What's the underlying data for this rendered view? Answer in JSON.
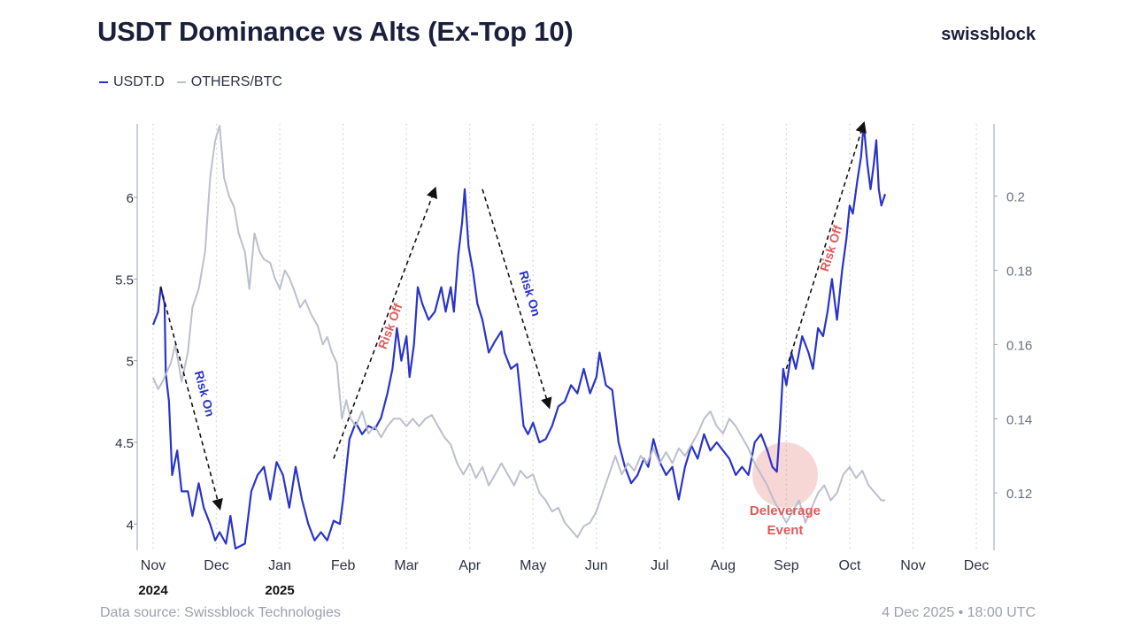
{
  "header": {
    "title": "USDT Dominance vs Alts (Ex-Top 10)",
    "brand": "swissblock"
  },
  "legend": [
    {
      "label": "USDT.D",
      "color": "#2a34c8"
    },
    {
      "label": "OTHERS/BTC",
      "color": "#b8bccb"
    }
  ],
  "footer": {
    "source": "Data source: Swissblock Technologies",
    "timestamp": "4 Dec 2025 • 18:00 UTC"
  },
  "chart_data": {
    "type": "line",
    "title": "USDT Dominance vs Alts (Ex-Top 10)",
    "x_months": [
      "Nov",
      "Dec",
      "Jan",
      "Feb",
      "Mar",
      "Apr",
      "May",
      "Jun",
      "Jul",
      "Aug",
      "Sep",
      "Oct",
      "Nov",
      "Dec"
    ],
    "year_labels": [
      {
        "month_index": 0,
        "label": "2024"
      },
      {
        "month_index": 2,
        "label": "2025"
      }
    ],
    "y_left": {
      "ticks": [
        4,
        4.5,
        5,
        5.5,
        6
      ],
      "labels": [
        "4",
        "4.5",
        "5",
        "5.5",
        "6"
      ],
      "range": [
        3.85,
        6.45
      ]
    },
    "y_right": {
      "ticks": [
        0.12,
        0.14,
        0.16,
        0.18,
        0.2
      ],
      "labels": [
        "0.12",
        "0.14",
        "0.16",
        "0.18",
        "0.2"
      ],
      "range": [
        0.105,
        0.2195
      ]
    },
    "series": [
      {
        "name": "USDT.D",
        "axis": "left",
        "color": "#2a34c8",
        "points": [
          [
            0,
            5.22
          ],
          [
            0.08,
            5.3
          ],
          [
            0.12,
            5.45
          ],
          [
            0.18,
            5.35
          ],
          [
            0.2,
            4.92
          ],
          [
            0.25,
            4.75
          ],
          [
            0.3,
            4.3
          ],
          [
            0.38,
            4.45
          ],
          [
            0.45,
            4.2
          ],
          [
            0.55,
            4.2
          ],
          [
            0.62,
            4.05
          ],
          [
            0.72,
            4.25
          ],
          [
            0.8,
            4.1
          ],
          [
            0.9,
            4.0
          ],
          [
            0.98,
            3.9
          ],
          [
            1.05,
            3.95
          ],
          [
            1.15,
            3.88
          ],
          [
            1.22,
            4.05
          ],
          [
            1.3,
            3.85
          ],
          [
            1.45,
            3.88
          ],
          [
            1.55,
            4.2
          ],
          [
            1.65,
            4.3
          ],
          [
            1.75,
            4.35
          ],
          [
            1.85,
            4.15
          ],
          [
            1.95,
            4.38
          ],
          [
            2.05,
            4.3
          ],
          [
            2.15,
            4.1
          ],
          [
            2.25,
            4.35
          ],
          [
            2.35,
            4.15
          ],
          [
            2.45,
            4.0
          ],
          [
            2.55,
            3.9
          ],
          [
            2.65,
            3.95
          ],
          [
            2.75,
            3.9
          ],
          [
            2.85,
            4.02
          ],
          [
            2.95,
            4.0
          ],
          [
            3.0,
            4.15
          ],
          [
            3.1,
            4.52
          ],
          [
            3.2,
            4.62
          ],
          [
            3.3,
            4.55
          ],
          [
            3.4,
            4.6
          ],
          [
            3.5,
            4.58
          ],
          [
            3.6,
            4.65
          ],
          [
            3.7,
            4.8
          ],
          [
            3.78,
            4.95
          ],
          [
            3.85,
            5.2
          ],
          [
            3.92,
            5.0
          ],
          [
            4.0,
            5.15
          ],
          [
            4.05,
            4.9
          ],
          [
            4.12,
            5.1
          ],
          [
            4.18,
            5.45
          ],
          [
            4.25,
            5.35
          ],
          [
            4.35,
            5.25
          ],
          [
            4.45,
            5.3
          ],
          [
            4.55,
            5.45
          ],
          [
            4.62,
            5.3
          ],
          [
            4.7,
            5.45
          ],
          [
            4.75,
            5.3
          ],
          [
            4.82,
            5.65
          ],
          [
            4.88,
            5.85
          ],
          [
            4.92,
            6.05
          ],
          [
            4.98,
            5.7
          ],
          [
            5.05,
            5.55
          ],
          [
            5.12,
            5.35
          ],
          [
            5.2,
            5.25
          ],
          [
            5.3,
            5.05
          ],
          [
            5.4,
            5.12
          ],
          [
            5.5,
            5.18
          ],
          [
            5.55,
            5.05
          ],
          [
            5.65,
            4.95
          ],
          [
            5.75,
            4.98
          ],
          [
            5.85,
            4.6
          ],
          [
            5.92,
            4.55
          ],
          [
            6.0,
            4.62
          ],
          [
            6.1,
            4.5
          ],
          [
            6.2,
            4.52
          ],
          [
            6.3,
            4.6
          ],
          [
            6.4,
            4.72
          ],
          [
            6.5,
            4.75
          ],
          [
            6.6,
            4.85
          ],
          [
            6.7,
            4.8
          ],
          [
            6.8,
            4.95
          ],
          [
            6.9,
            4.8
          ],
          [
            7.0,
            4.9
          ],
          [
            7.05,
            5.05
          ],
          [
            7.15,
            4.85
          ],
          [
            7.25,
            4.82
          ],
          [
            7.35,
            4.5
          ],
          [
            7.45,
            4.35
          ],
          [
            7.55,
            4.25
          ],
          [
            7.65,
            4.3
          ],
          [
            7.75,
            4.4
          ],
          [
            7.82,
            4.35
          ],
          [
            7.9,
            4.52
          ],
          [
            8.0,
            4.38
          ],
          [
            8.1,
            4.3
          ],
          [
            8.2,
            4.35
          ],
          [
            8.3,
            4.15
          ],
          [
            8.4,
            4.35
          ],
          [
            8.5,
            4.48
          ],
          [
            8.6,
            4.4
          ],
          [
            8.7,
            4.55
          ],
          [
            8.8,
            4.45
          ],
          [
            8.9,
            4.5
          ],
          [
            9.0,
            4.45
          ],
          [
            9.1,
            4.4
          ],
          [
            9.2,
            4.3
          ],
          [
            9.3,
            4.35
          ],
          [
            9.4,
            4.3
          ],
          [
            9.5,
            4.5
          ],
          [
            9.6,
            4.55
          ],
          [
            9.7,
            4.45
          ],
          [
            9.78,
            4.35
          ],
          [
            9.85,
            4.32
          ],
          [
            9.9,
            4.6
          ],
          [
            9.95,
            4.95
          ],
          [
            10.0,
            4.85
          ],
          [
            10.08,
            5.05
          ],
          [
            10.15,
            4.95
          ],
          [
            10.25,
            5.15
          ],
          [
            10.35,
            5.05
          ],
          [
            10.42,
            4.95
          ],
          [
            10.5,
            5.2
          ],
          [
            10.58,
            5.15
          ],
          [
            10.65,
            5.3
          ],
          [
            10.72,
            5.5
          ],
          [
            10.8,
            5.25
          ],
          [
            10.88,
            5.55
          ],
          [
            10.95,
            5.75
          ],
          [
            11.0,
            5.95
          ],
          [
            11.05,
            5.9
          ],
          [
            11.12,
            6.1
          ],
          [
            11.18,
            6.25
          ],
          [
            11.22,
            6.45
          ],
          [
            11.28,
            6.2
          ],
          [
            11.33,
            6.05
          ],
          [
            11.38,
            6.2
          ],
          [
            11.42,
            6.35
          ],
          [
            11.46,
            6.05
          ],
          [
            11.5,
            5.95
          ],
          [
            11.56,
            6.02
          ]
        ]
      },
      {
        "name": "OTHERS/BTC",
        "axis": "right",
        "color": "#b8bccb",
        "points": [
          [
            0,
            0.151
          ],
          [
            0.08,
            0.148
          ],
          [
            0.15,
            0.15
          ],
          [
            0.2,
            0.152
          ],
          [
            0.28,
            0.155
          ],
          [
            0.35,
            0.16
          ],
          [
            0.45,
            0.15
          ],
          [
            0.55,
            0.158
          ],
          [
            0.62,
            0.17
          ],
          [
            0.72,
            0.175
          ],
          [
            0.82,
            0.185
          ],
          [
            0.9,
            0.205
          ],
          [
            0.98,
            0.215
          ],
          [
            1.05,
            0.219
          ],
          [
            1.12,
            0.205
          ],
          [
            1.2,
            0.2
          ],
          [
            1.28,
            0.197
          ],
          [
            1.35,
            0.19
          ],
          [
            1.45,
            0.185
          ],
          [
            1.52,
            0.175
          ],
          [
            1.6,
            0.19
          ],
          [
            1.68,
            0.185
          ],
          [
            1.75,
            0.183
          ],
          [
            1.85,
            0.182
          ],
          [
            1.92,
            0.178
          ],
          [
            2.0,
            0.175
          ],
          [
            2.08,
            0.18
          ],
          [
            2.15,
            0.178
          ],
          [
            2.22,
            0.175
          ],
          [
            2.32,
            0.17
          ],
          [
            2.4,
            0.172
          ],
          [
            2.5,
            0.168
          ],
          [
            2.6,
            0.165
          ],
          [
            2.68,
            0.16
          ],
          [
            2.75,
            0.162
          ],
          [
            2.82,
            0.158
          ],
          [
            2.9,
            0.155
          ],
          [
            2.98,
            0.14
          ],
          [
            3.05,
            0.145
          ],
          [
            3.12,
            0.14
          ],
          [
            3.2,
            0.138
          ],
          [
            3.3,
            0.142
          ],
          [
            3.4,
            0.136
          ],
          [
            3.5,
            0.138
          ],
          [
            3.6,
            0.135
          ],
          [
            3.7,
            0.138
          ],
          [
            3.8,
            0.14
          ],
          [
            3.9,
            0.14
          ],
          [
            4.0,
            0.138
          ],
          [
            4.1,
            0.14
          ],
          [
            4.2,
            0.138
          ],
          [
            4.3,
            0.14
          ],
          [
            4.4,
            0.141
          ],
          [
            4.5,
            0.138
          ],
          [
            4.6,
            0.135
          ],
          [
            4.7,
            0.133
          ],
          [
            4.8,
            0.128
          ],
          [
            4.9,
            0.125
          ],
          [
            5.0,
            0.128
          ],
          [
            5.1,
            0.124
          ],
          [
            5.2,
            0.127
          ],
          [
            5.3,
            0.122
          ],
          [
            5.4,
            0.125
          ],
          [
            5.5,
            0.128
          ],
          [
            5.6,
            0.125
          ],
          [
            5.7,
            0.122
          ],
          [
            5.8,
            0.126
          ],
          [
            5.9,
            0.124
          ],
          [
            6.0,
            0.125
          ],
          [
            6.1,
            0.12
          ],
          [
            6.2,
            0.118
          ],
          [
            6.3,
            0.115
          ],
          [
            6.4,
            0.116
          ],
          [
            6.5,
            0.112
          ],
          [
            6.6,
            0.11
          ],
          [
            6.7,
            0.108
          ],
          [
            6.8,
            0.111
          ],
          [
            6.9,
            0.112
          ],
          [
            7.0,
            0.115
          ],
          [
            7.1,
            0.12
          ],
          [
            7.2,
            0.125
          ],
          [
            7.3,
            0.13
          ],
          [
            7.4,
            0.125
          ],
          [
            7.5,
            0.128
          ],
          [
            7.6,
            0.126
          ],
          [
            7.7,
            0.13
          ],
          [
            7.8,
            0.128
          ],
          [
            7.9,
            0.132
          ],
          [
            8.0,
            0.128
          ],
          [
            8.1,
            0.131
          ],
          [
            8.2,
            0.128
          ],
          [
            8.3,
            0.132
          ],
          [
            8.4,
            0.13
          ],
          [
            8.5,
            0.133
          ],
          [
            8.6,
            0.136
          ],
          [
            8.7,
            0.14
          ],
          [
            8.8,
            0.142
          ],
          [
            8.9,
            0.138
          ],
          [
            9.0,
            0.136
          ],
          [
            9.1,
            0.14
          ],
          [
            9.2,
            0.138
          ],
          [
            9.3,
            0.135
          ],
          [
            9.4,
            0.132
          ],
          [
            9.5,
            0.128
          ],
          [
            9.6,
            0.125
          ],
          [
            9.7,
            0.122
          ],
          [
            9.8,
            0.118
          ],
          [
            9.9,
            0.115
          ],
          [
            10.0,
            0.112
          ],
          [
            10.1,
            0.115
          ],
          [
            10.2,
            0.118
          ],
          [
            10.3,
            0.112
          ],
          [
            10.4,
            0.116
          ],
          [
            10.5,
            0.12
          ],
          [
            10.6,
            0.122
          ],
          [
            10.7,
            0.118
          ],
          [
            10.8,
            0.12
          ],
          [
            10.9,
            0.125
          ],
          [
            11.0,
            0.127
          ],
          [
            11.1,
            0.124
          ],
          [
            11.2,
            0.126
          ],
          [
            11.3,
            0.122
          ],
          [
            11.4,
            0.12
          ],
          [
            11.5,
            0.118
          ],
          [
            11.56,
            0.118
          ]
        ]
      }
    ],
    "annotations": [
      {
        "label": "Risk On",
        "color": "#2a34c8",
        "from": [
          0.12,
          5.45
        ],
        "to": [
          1.05,
          4.1
        ]
      },
      {
        "label": "Risk Off",
        "color": "#e05a5a",
        "from": [
          2.85,
          4.4
        ],
        "to": [
          4.45,
          6.05
        ]
      },
      {
        "label": "Risk On",
        "color": "#2a34c8",
        "from": [
          5.2,
          6.05
        ],
        "to": [
          6.25,
          4.72
        ]
      },
      {
        "label": "Risk Off",
        "color": "#e05a5a",
        "from": [
          10.0,
          4.95
        ],
        "to": [
          11.22,
          6.45
        ]
      }
    ],
    "highlight": {
      "label_lines": [
        "Deleverage",
        "Event"
      ],
      "color": "#e05a5a",
      "at": [
        9.98,
        4.3
      ]
    }
  }
}
